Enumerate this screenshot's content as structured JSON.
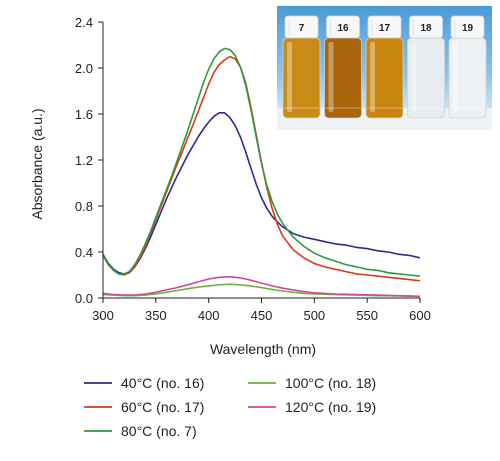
{
  "chart_data": {
    "type": "line",
    "title": "",
    "xlabel": "Wavelength (nm)",
    "ylabel": "Absorbance (a.u.)",
    "xlim": [
      300,
      600
    ],
    "ylim": [
      0.0,
      2.4
    ],
    "xticks": [
      300,
      350,
      400,
      450,
      500,
      550,
      600
    ],
    "yticks": [
      "0.0",
      "0.4",
      "0.8",
      "1.2",
      "1.6",
      "2.0",
      "2.4"
    ],
    "grid": false,
    "legend_position": "bottom",
    "series": [
      {
        "name": "40°C (no. 16)",
        "color": "#2e2a8c",
        "points": [
          [
            300,
            0.38
          ],
          [
            305,
            0.3
          ],
          [
            310,
            0.25
          ],
          [
            315,
            0.22
          ],
          [
            320,
            0.21
          ],
          [
            325,
            0.22
          ],
          [
            330,
            0.27
          ],
          [
            335,
            0.34
          ],
          [
            340,
            0.43
          ],
          [
            345,
            0.53
          ],
          [
            350,
            0.64
          ],
          [
            355,
            0.75
          ],
          [
            360,
            0.86
          ],
          [
            365,
            0.96
          ],
          [
            370,
            1.06
          ],
          [
            375,
            1.15
          ],
          [
            380,
            1.24
          ],
          [
            385,
            1.32
          ],
          [
            390,
            1.4
          ],
          [
            395,
            1.47
          ],
          [
            400,
            1.53
          ],
          [
            405,
            1.58
          ],
          [
            410,
            1.61
          ],
          [
            415,
            1.61
          ],
          [
            420,
            1.57
          ],
          [
            425,
            1.5
          ],
          [
            430,
            1.4
          ],
          [
            435,
            1.27
          ],
          [
            440,
            1.13
          ],
          [
            445,
            0.99
          ],
          [
            450,
            0.87
          ],
          [
            455,
            0.78
          ],
          [
            460,
            0.71
          ],
          [
            465,
            0.66
          ],
          [
            470,
            0.62
          ],
          [
            480,
            0.56
          ],
          [
            490,
            0.53
          ],
          [
            500,
            0.51
          ],
          [
            510,
            0.49
          ],
          [
            520,
            0.47
          ],
          [
            530,
            0.46
          ],
          [
            540,
            0.44
          ],
          [
            550,
            0.43
          ],
          [
            560,
            0.41
          ],
          [
            570,
            0.4
          ],
          [
            580,
            0.38
          ],
          [
            590,
            0.37
          ],
          [
            600,
            0.35
          ]
        ]
      },
      {
        "name": "60°C (no. 17)",
        "color": "#d93a1a",
        "points": [
          [
            300,
            0.37
          ],
          [
            305,
            0.29
          ],
          [
            310,
            0.24
          ],
          [
            315,
            0.21
          ],
          [
            320,
            0.2
          ],
          [
            325,
            0.22
          ],
          [
            330,
            0.27
          ],
          [
            335,
            0.35
          ],
          [
            340,
            0.45
          ],
          [
            345,
            0.56
          ],
          [
            350,
            0.68
          ],
          [
            355,
            0.8
          ],
          [
            360,
            0.92
          ],
          [
            365,
            1.04
          ],
          [
            370,
            1.16
          ],
          [
            375,
            1.27
          ],
          [
            380,
            1.39
          ],
          [
            385,
            1.5
          ],
          [
            390,
            1.62
          ],
          [
            395,
            1.74
          ],
          [
            400,
            1.86
          ],
          [
            405,
            1.96
          ],
          [
            410,
            2.03
          ],
          [
            415,
            2.07
          ],
          [
            420,
            2.1
          ],
          [
            425,
            2.08
          ],
          [
            430,
            2.01
          ],
          [
            435,
            1.87
          ],
          [
            440,
            1.66
          ],
          [
            445,
            1.42
          ],
          [
            450,
            1.18
          ],
          [
            455,
            0.96
          ],
          [
            460,
            0.78
          ],
          [
            465,
            0.64
          ],
          [
            470,
            0.54
          ],
          [
            480,
            0.42
          ],
          [
            490,
            0.35
          ],
          [
            500,
            0.3
          ],
          [
            510,
            0.27
          ],
          [
            520,
            0.25
          ],
          [
            530,
            0.23
          ],
          [
            540,
            0.21
          ],
          [
            550,
            0.2
          ],
          [
            560,
            0.19
          ],
          [
            570,
            0.18
          ],
          [
            580,
            0.17
          ],
          [
            590,
            0.16
          ],
          [
            600,
            0.15
          ]
        ]
      },
      {
        "name": "80°C (no. 7)",
        "color": "#2f9a3c",
        "points": [
          [
            300,
            0.37
          ],
          [
            305,
            0.29
          ],
          [
            310,
            0.24
          ],
          [
            315,
            0.21
          ],
          [
            320,
            0.21
          ],
          [
            325,
            0.23
          ],
          [
            330,
            0.29
          ],
          [
            335,
            0.37
          ],
          [
            340,
            0.47
          ],
          [
            345,
            0.58
          ],
          [
            350,
            0.7
          ],
          [
            355,
            0.82
          ],
          [
            360,
            0.94
          ],
          [
            365,
            1.06
          ],
          [
            370,
            1.19
          ],
          [
            375,
            1.32
          ],
          [
            380,
            1.45
          ],
          [
            385,
            1.59
          ],
          [
            390,
            1.73
          ],
          [
            395,
            1.87
          ],
          [
            400,
            1.99
          ],
          [
            405,
            2.08
          ],
          [
            410,
            2.14
          ],
          [
            415,
            2.17
          ],
          [
            420,
            2.16
          ],
          [
            425,
            2.11
          ],
          [
            430,
            2.01
          ],
          [
            435,
            1.85
          ],
          [
            440,
            1.64
          ],
          [
            445,
            1.4
          ],
          [
            450,
            1.17
          ],
          [
            455,
            0.98
          ],
          [
            460,
            0.84
          ],
          [
            465,
            0.73
          ],
          [
            470,
            0.65
          ],
          [
            480,
            0.53
          ],
          [
            490,
            0.45
          ],
          [
            500,
            0.39
          ],
          [
            510,
            0.35
          ],
          [
            520,
            0.32
          ],
          [
            530,
            0.29
          ],
          [
            540,
            0.27
          ],
          [
            550,
            0.25
          ],
          [
            560,
            0.24
          ],
          [
            570,
            0.22
          ],
          [
            580,
            0.21
          ],
          [
            590,
            0.2
          ],
          [
            600,
            0.19
          ]
        ]
      },
      {
        "name": "100°C (no. 18)",
        "color": "#6db33f",
        "points": [
          [
            300,
            0.03
          ],
          [
            310,
            0.025
          ],
          [
            320,
            0.02
          ],
          [
            330,
            0.02
          ],
          [
            340,
            0.025
          ],
          [
            350,
            0.035
          ],
          [
            360,
            0.05
          ],
          [
            370,
            0.065
          ],
          [
            380,
            0.08
          ],
          [
            390,
            0.095
          ],
          [
            400,
            0.105
          ],
          [
            410,
            0.115
          ],
          [
            420,
            0.12
          ],
          [
            430,
            0.115
          ],
          [
            440,
            0.105
          ],
          [
            450,
            0.09
          ],
          [
            460,
            0.075
          ],
          [
            470,
            0.06
          ],
          [
            480,
            0.05
          ],
          [
            490,
            0.04
          ],
          [
            500,
            0.035
          ],
          [
            520,
            0.03
          ],
          [
            540,
            0.025
          ],
          [
            560,
            0.02
          ],
          [
            580,
            0.018
          ],
          [
            600,
            0.015
          ]
        ]
      },
      {
        "name": "120°C (no. 19)",
        "color": "#d4479b",
        "points": [
          [
            300,
            0.04
          ],
          [
            310,
            0.03
          ],
          [
            320,
            0.025
          ],
          [
            330,
            0.025
          ],
          [
            340,
            0.035
          ],
          [
            350,
            0.05
          ],
          [
            360,
            0.07
          ],
          [
            370,
            0.09
          ],
          [
            380,
            0.115
          ],
          [
            390,
            0.14
          ],
          [
            400,
            0.165
          ],
          [
            410,
            0.18
          ],
          [
            420,
            0.185
          ],
          [
            430,
            0.175
          ],
          [
            440,
            0.155
          ],
          [
            450,
            0.13
          ],
          [
            460,
            0.105
          ],
          [
            470,
            0.085
          ],
          [
            480,
            0.07
          ],
          [
            490,
            0.055
          ],
          [
            500,
            0.045
          ],
          [
            520,
            0.035
          ],
          [
            540,
            0.03
          ],
          [
            560,
            0.025
          ],
          [
            580,
            0.02
          ],
          [
            600,
            0.015
          ]
        ]
      }
    ]
  },
  "inset_photo": {
    "vial_labels": [
      "7",
      "16",
      "17",
      "18",
      "19"
    ],
    "vial_colors": [
      "#c88c16",
      "#a8650c",
      "#c9860f",
      "#e6ecef",
      "#eef1f3"
    ],
    "background_color": "#4a9ad8"
  }
}
